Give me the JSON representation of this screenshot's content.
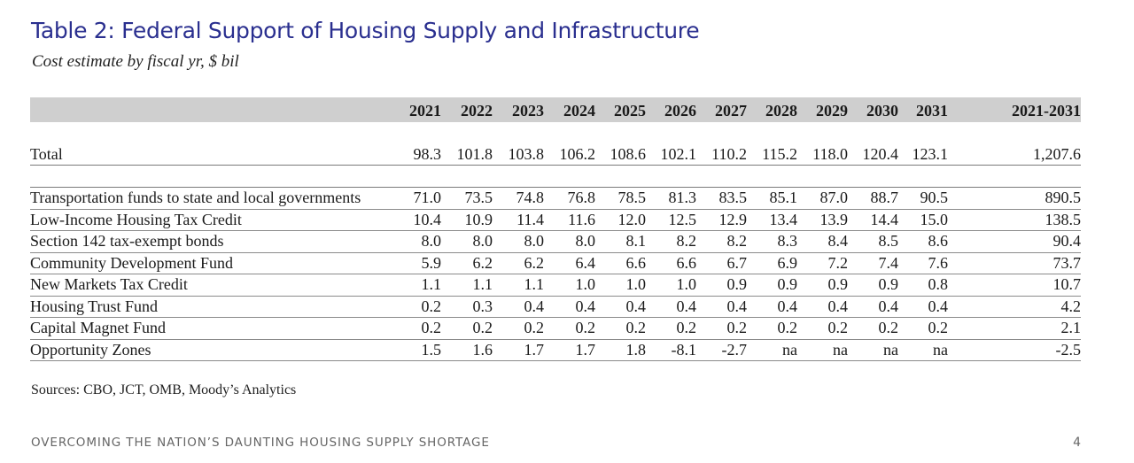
{
  "title": "Table 2: Federal Support of Housing Supply and Infrastructure",
  "subtitle": "Cost estimate by fiscal yr, $ bil",
  "table": {
    "columns": [
      "2021",
      "2022",
      "2023",
      "2024",
      "2025",
      "2026",
      "2027",
      "2028",
      "2029",
      "2030",
      "2031",
      "2021-2031"
    ],
    "total_row": {
      "label": "Total",
      "values": [
        "98.3",
        "101.8",
        "103.8",
        "106.2",
        "108.6",
        "102.1",
        "110.2",
        "115.2",
        "118.0",
        "120.4",
        "123.1",
        "1,207.6"
      ]
    },
    "rows": [
      {
        "label": "Transportation funds to state and local governments",
        "values": [
          "71.0",
          "73.5",
          "74.8",
          "76.8",
          "78.5",
          "81.3",
          "83.5",
          "85.1",
          "87.0",
          "88.7",
          "90.5",
          "890.5"
        ]
      },
      {
        "label": "Low-Income Housing Tax Credit",
        "values": [
          "10.4",
          "10.9",
          "11.4",
          "11.6",
          "12.0",
          "12.5",
          "12.9",
          "13.4",
          "13.9",
          "14.4",
          "15.0",
          "138.5"
        ]
      },
      {
        "label": "Section 142 tax-exempt bonds",
        "values": [
          "8.0",
          "8.0",
          "8.0",
          "8.0",
          "8.1",
          "8.2",
          "8.2",
          "8.3",
          "8.4",
          "8.5",
          "8.6",
          "90.4"
        ]
      },
      {
        "label": "Community Development Fund",
        "values": [
          "5.9",
          "6.2",
          "6.2",
          "6.4",
          "6.6",
          "6.6",
          "6.7",
          "6.9",
          "7.2",
          "7.4",
          "7.6",
          "73.7"
        ]
      },
      {
        "label": "New Markets Tax Credit",
        "values": [
          "1.1",
          "1.1",
          "1.1",
          "1.0",
          "1.0",
          "1.0",
          "0.9",
          "0.9",
          "0.9",
          "0.9",
          "0.8",
          "10.7"
        ]
      },
      {
        "label": "Housing Trust Fund",
        "values": [
          "0.2",
          "0.3",
          "0.4",
          "0.4",
          "0.4",
          "0.4",
          "0.4",
          "0.4",
          "0.4",
          "0.4",
          "0.4",
          "4.2"
        ]
      },
      {
        "label": "Capital Magnet Fund",
        "values": [
          "0.2",
          "0.2",
          "0.2",
          "0.2",
          "0.2",
          "0.2",
          "0.2",
          "0.2",
          "0.2",
          "0.2",
          "0.2",
          "2.1"
        ]
      },
      {
        "label": "Opportunity Zones",
        "values": [
          "1.5",
          "1.6",
          "1.7",
          "1.7",
          "1.8",
          "-8.1",
          "-2.7",
          "na",
          "na",
          "na",
          "na",
          "-2.5"
        ]
      }
    ]
  },
  "sources": "Sources: CBO, JCT, OMB, Moody’s Analytics",
  "footer": {
    "text": "OVERCOMING THE NATION’S DAUNTING HOUSING SUPPLY SHORTAGE",
    "page_number": "4"
  },
  "colors": {
    "title": "#2a2f8f",
    "header_band": "#cfcfcf",
    "footer_text": "#666666"
  }
}
